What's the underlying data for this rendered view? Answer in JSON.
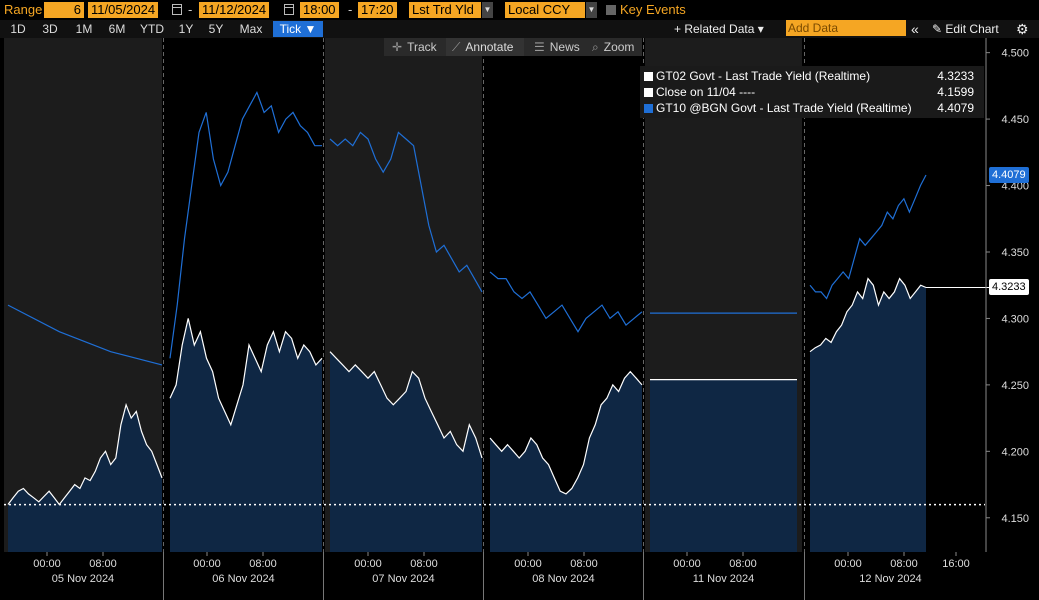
{
  "toolbar": {
    "range_label": "Range",
    "range_count": "6",
    "start_date": "11/05/2024",
    "end_date": "11/12/2024",
    "start_time": "18:00",
    "end_time": "17:20",
    "field": "Lst Trd Yld",
    "currency": "Local CCY",
    "key_events": "Key Events",
    "date_sep": "-",
    "time_sep": "-"
  },
  "periods": [
    "1D",
    "3D",
    "1M",
    "6M",
    "YTD",
    "1Y",
    "5Y",
    "Max",
    "Tick ▼"
  ],
  "active_period_index": 8,
  "right_buttons": {
    "related": "+ Related Data ▾",
    "add_data_placeholder": "Add Data",
    "collapse": "«",
    "edit": "✎ Edit Chart",
    "gear": "⚙"
  },
  "chart_tools": [
    {
      "icon": "✛",
      "label": "Track"
    },
    {
      "icon": "⟋",
      "label": "Annotate"
    },
    {
      "icon": "☰",
      "label": "News"
    },
    {
      "icon": "⌕",
      "label": "Zoom"
    }
  ],
  "active_tool_index": 1,
  "legend": [
    {
      "label": "GT02 Govt - Last Trade Yield (Realtime)",
      "value": "4.3233",
      "color": "#ffffff"
    },
    {
      "label": "Close on 11/04 ----",
      "value": "4.1599",
      "color": "#ffffff"
    },
    {
      "label": "GT10 @BGN Govt - Last Trade Yield (Realtime)",
      "value": "4.4079",
      "color": "#1f6fd6"
    }
  ],
  "last_tags": {
    "gt10": {
      "text": "4.4079",
      "value": 4.4079,
      "bg": "#1f6fd6",
      "fg": "#ffffff"
    },
    "gt02": {
      "text": "4.3233",
      "value": 4.3233,
      "bg": "#ffffff",
      "fg": "#000000"
    }
  },
  "chart_data": {
    "type": "line",
    "ylim": [
      4.125,
      4.505
    ],
    "yticks": [
      "4.500",
      "4.450",
      "4.400",
      "4.350",
      "4.300",
      "4.250",
      "4.200",
      "4.150"
    ],
    "ytick_values": [
      4.5,
      4.45,
      4.4,
      4.35,
      4.3,
      4.25,
      4.2,
      4.15
    ],
    "close_line": 4.1599,
    "days": [
      "05 Nov 2024",
      "06 Nov 2024",
      "07 Nov 2024",
      "08 Nov 2024",
      "11 Nov 2024",
      "12 Nov 2024"
    ],
    "time_ticks": [
      "00:00",
      "08:00"
    ],
    "extra_time_tick": "16:00",
    "colors": {
      "gt02": "#ffffff",
      "gt02_area": "#0f2744",
      "gt10": "#1f6fd6",
      "close": "#ffffff",
      "shade": "#1c1c1c"
    },
    "series": [
      {
        "name": "GT02 Govt - Last Trade Yield (Realtime)",
        "segments": [
          [
            4.16,
            4.165,
            4.17,
            4.172,
            4.168,
            4.165,
            4.162,
            4.166,
            4.17,
            4.165,
            4.16,
            4.165,
            4.17,
            4.175,
            4.172,
            4.18,
            4.178,
            4.185,
            4.195,
            4.2,
            4.19,
            4.195,
            4.22,
            4.235,
            4.225,
            4.23,
            4.215,
            4.205,
            4.2,
            4.19,
            4.18
          ],
          [
            4.24,
            4.25,
            4.28,
            4.3,
            4.28,
            4.29,
            4.27,
            4.26,
            4.24,
            4.23,
            4.22,
            4.235,
            4.25,
            4.28,
            4.27,
            4.26,
            4.28,
            4.29,
            4.275,
            4.29,
            4.285,
            4.27,
            4.28,
            4.275,
            4.265,
            4.27
          ],
          [
            4.275,
            4.27,
            4.265,
            4.26,
            4.265,
            4.26,
            4.255,
            4.26,
            4.25,
            4.24,
            4.235,
            4.24,
            4.245,
            4.26,
            4.255,
            4.24,
            4.23,
            4.22,
            4.21,
            4.215,
            4.205,
            4.2,
            4.22,
            4.21,
            4.195
          ],
          [
            4.21,
            4.205,
            4.2,
            4.205,
            4.2,
            4.195,
            4.2,
            4.21,
            4.205,
            4.195,
            4.19,
            4.18,
            4.17,
            4.168,
            4.172,
            4.18,
            4.19,
            4.21,
            4.22,
            4.235,
            4.24,
            4.25,
            4.245,
            4.255,
            4.26,
            4.255,
            4.25
          ],
          [
            4.254,
            4.254
          ],
          [
            4.275,
            4.278,
            4.28,
            4.285,
            4.282,
            4.29,
            4.295,
            4.305,
            4.31,
            4.32,
            4.315,
            4.33,
            4.325,
            4.31,
            4.32,
            4.315,
            4.32,
            4.33,
            4.325,
            4.315,
            4.32,
            4.325,
            4.3233
          ]
        ]
      },
      {
        "name": "GT10 @BGN Govt - Last Trade Yield (Realtime)",
        "segments": [
          [
            4.31,
            4.29,
            4.275,
            4.265
          ],
          [
            4.27,
            4.31,
            4.36,
            4.4,
            4.44,
            4.455,
            4.42,
            4.4,
            4.41,
            4.43,
            4.45,
            4.46,
            4.47,
            4.455,
            4.46,
            4.44,
            4.45,
            4.455,
            4.445,
            4.44,
            4.43,
            4.43
          ],
          [
            4.435,
            4.43,
            4.435,
            4.43,
            4.44,
            4.435,
            4.42,
            4.41,
            4.42,
            4.44,
            4.435,
            4.43,
            4.4,
            4.37,
            4.35,
            4.355,
            4.345,
            4.335,
            4.34,
            4.33,
            4.32
          ],
          [
            4.335,
            4.33,
            4.33,
            4.32,
            4.315,
            4.32,
            4.31,
            4.3,
            4.305,
            4.31,
            4.3,
            4.29,
            4.3,
            4.305,
            4.31,
            4.3,
            4.305,
            4.295,
            4.3,
            4.305
          ],
          [
            4.304,
            4.304
          ],
          [
            4.325,
            4.32,
            4.32,
            4.315,
            4.325,
            4.33,
            4.335,
            4.33,
            4.345,
            4.36,
            4.355,
            4.36,
            4.365,
            4.37,
            4.38,
            4.375,
            4.385,
            4.39,
            4.38,
            4.39,
            4.4,
            4.4079
          ]
        ]
      }
    ]
  }
}
